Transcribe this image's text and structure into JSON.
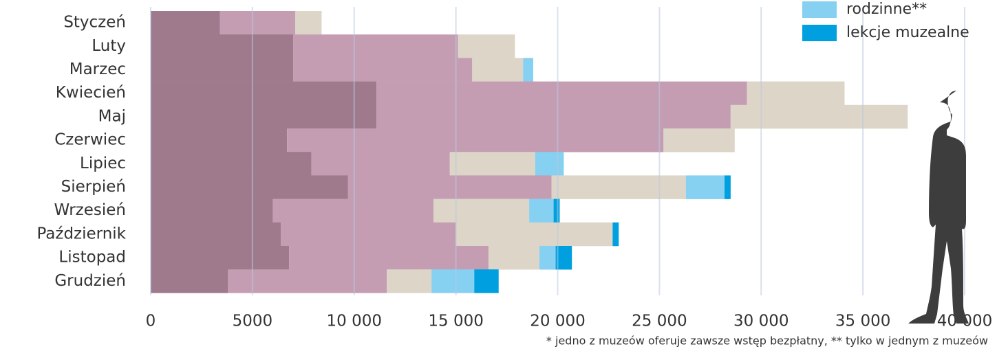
{
  "chart_data": {
    "type": "stacked-barh",
    "categories": [
      "Styczeń",
      "Luty",
      "Marzec",
      "Kwiecień",
      "Maj",
      "Czerwiec",
      "Lipiec",
      "Sierpień",
      "Wrzesień",
      "Październik",
      "Listopad",
      "Grudzień"
    ],
    "series": [
      {
        "color": "#9e7a8c",
        "values": [
          3400,
          7000,
          7000,
          11100,
          11100,
          6700,
          7900,
          9700,
          6000,
          6400,
          6800,
          3800
        ]
      },
      {
        "color": "#c49db3",
        "values": [
          3700,
          8100,
          8800,
          18200,
          17400,
          18500,
          6800,
          10000,
          7900,
          8600,
          9800,
          7800
        ]
      },
      {
        "color": "#ddd5c8",
        "values": [
          1300,
          2800,
          2500,
          4800,
          8700,
          3500,
          4200,
          6600,
          4700,
          7700,
          2500,
          2200
        ]
      },
      {
        "name": "rodzinne**",
        "color": "#86d0f2",
        "values": [
          0,
          0,
          500,
          0,
          0,
          0,
          1400,
          1900,
          1200,
          0,
          800,
          2100
        ]
      },
      {
        "name": "lekcje muzealne",
        "color": "#00a0e0",
        "values": [
          0,
          0,
          0,
          0,
          0,
          0,
          0,
          300,
          300,
          300,
          800,
          1200
        ]
      }
    ],
    "xlim": [
      0,
      40000
    ],
    "xticks": [
      0,
      5000,
      {
        "value": 10000,
        "label": "10 000"
      },
      {
        "value": 15000,
        "label": "15 000"
      },
      {
        "value": 20000,
        "label": "20 000"
      },
      {
        "value": 25000,
        "label": "25 000"
      },
      {
        "value": 30000,
        "label": "30 000"
      },
      {
        "value": 35000,
        "label": "35 000"
      },
      {
        "value": 40000,
        "label": "40 000"
      }
    ],
    "grid": true,
    "legend": "top-right",
    "footnote": "* jedno z muzeów oferuje zawsze wstęp bezpłatny, ** tylko w jednym z muzeów"
  }
}
